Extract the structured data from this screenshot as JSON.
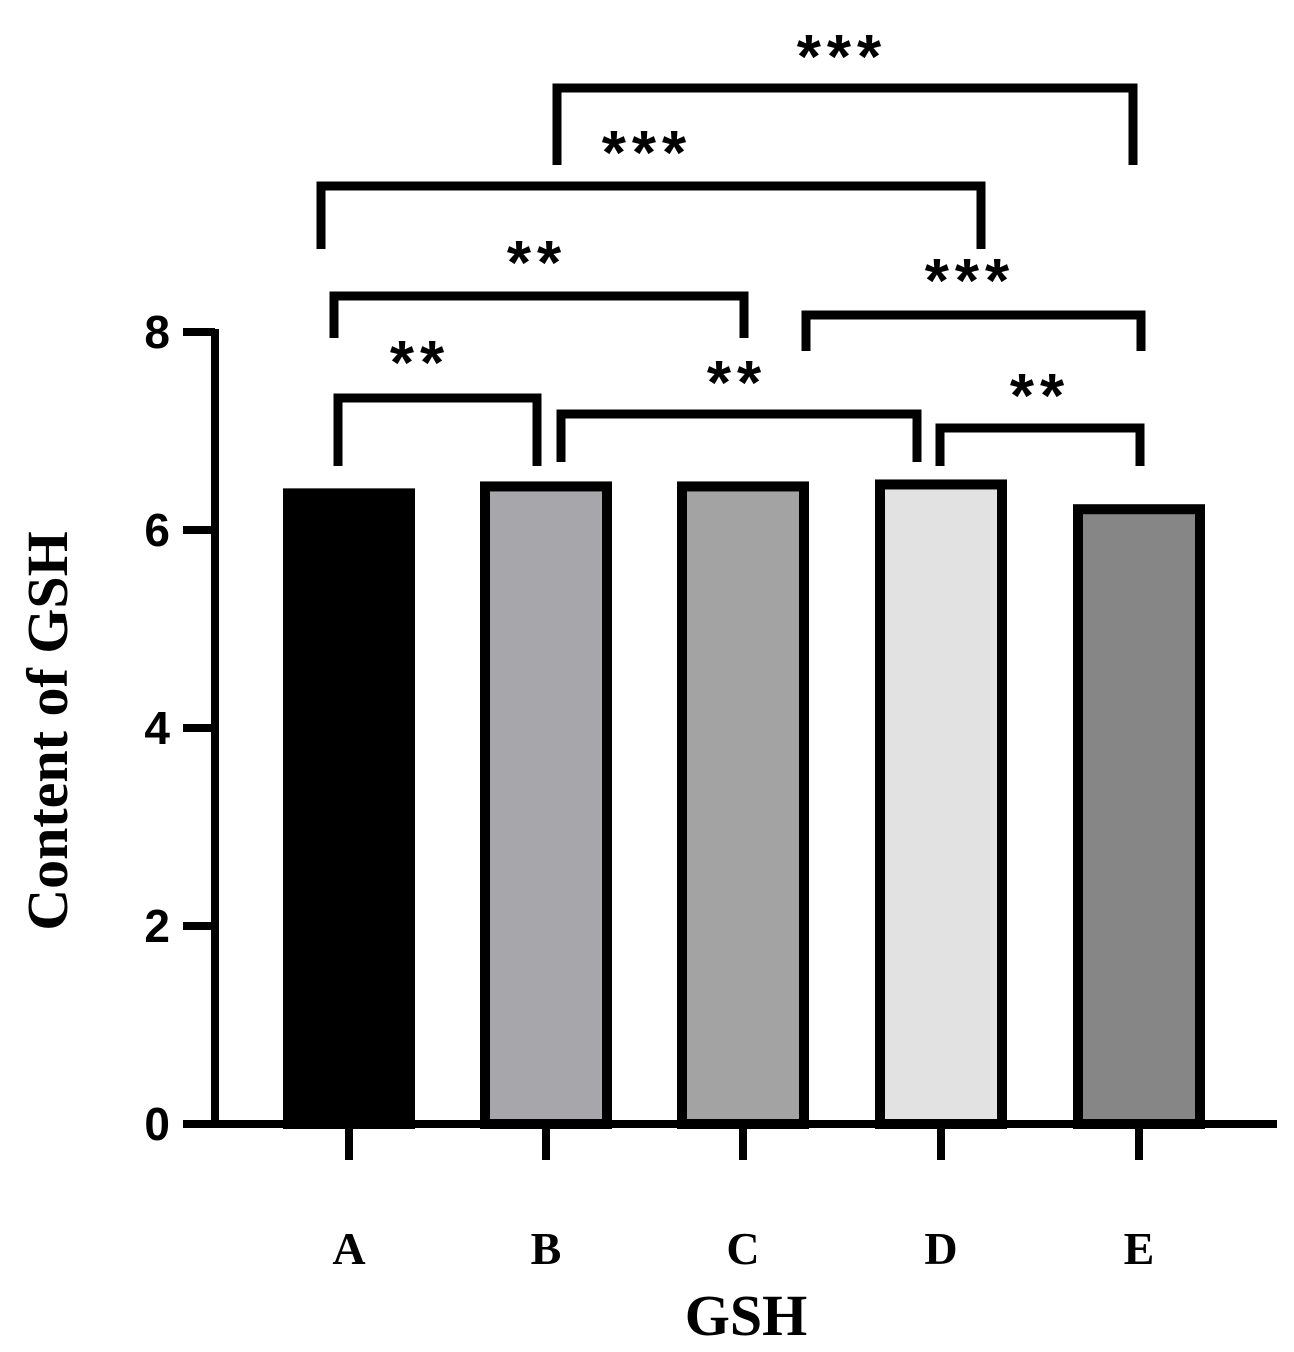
{
  "chart_data": {
    "type": "bar",
    "categories": [
      "A",
      "B",
      "C",
      "D",
      "E"
    ],
    "values": [
      6.37,
      6.44,
      6.44,
      6.46,
      6.21
    ],
    "colors": [
      "#000000",
      "#a7a7ab",
      "#a3a3a3",
      "#e2e2e2",
      "#868686"
    ],
    "xlabel": "GSH",
    "ylabel": "Content of GSH",
    "ylim": [
      0,
      8
    ],
    "yticks": [
      0,
      2,
      4,
      6,
      8
    ],
    "ytick_labels": [
      "0",
      "2",
      "4",
      "6",
      "8"
    ],
    "grid": false,
    "significance": [
      {
        "from": "A",
        "to": "B",
        "label": "**"
      },
      {
        "from": "B",
        "to": "D",
        "label": "**"
      },
      {
        "from": "D",
        "to": "E",
        "label": "**"
      },
      {
        "from": "A",
        "to": "C",
        "label": "**"
      },
      {
        "from": "C",
        "to": "E",
        "label": "***"
      },
      {
        "from": "A",
        "to": "D",
        "label": "***"
      },
      {
        "from": "B",
        "to": "E",
        "label": "***"
      }
    ]
  }
}
